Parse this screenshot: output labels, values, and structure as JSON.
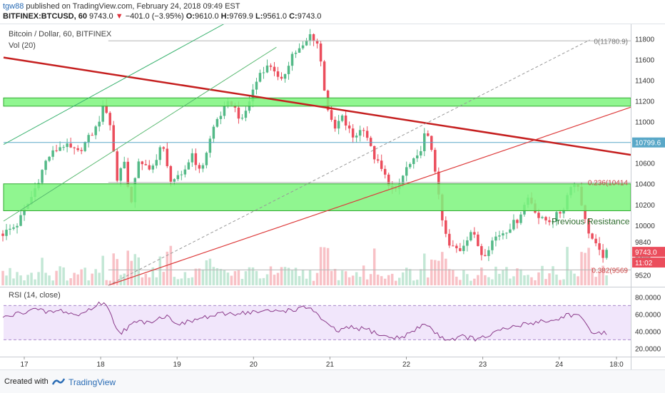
{
  "header": {
    "user": "tgw88",
    "published_text": "published on TradingView.com, February 24, 2018 09:49 EST",
    "symbol": "BITFINEX:BTCUSD, 60",
    "last": "9743.0",
    "change_arrow": "▼",
    "change": "−401.0 (−3.95%)",
    "o_label": "O:",
    "o": "9610.0",
    "h_label": "H:",
    "h": "9769.9",
    "l_label": "L:",
    "l": "9561.0",
    "c_label": "C:",
    "c": "9743.0"
  },
  "footer": {
    "created_with": "Created with",
    "brand": "TradingView"
  },
  "colors": {
    "up": "#53b987",
    "down": "#eb4d5c",
    "green_zone": "#7cf57c",
    "trend_red": "#c51f1f",
    "rsi_line": "#8a3a8a",
    "rsi_band": "#f1e6fb",
    "horizontal": "#5aa8c8"
  },
  "chart_data": [
    {
      "type": "candlestick",
      "title": "Bitcoin / Dollar, 60, BITFINEX",
      "volume_label": "Vol (20)",
      "y_ticks": [
        9520,
        9680,
        9840,
        10000,
        10200,
        10400,
        10600,
        10799.6,
        11000,
        11200,
        11400,
        11600,
        11800
      ],
      "ylim": [
        9420,
        11900
      ],
      "x_ticks": [
        "17",
        "18",
        "19",
        "20",
        "21",
        "22",
        "23",
        "24",
        "18:0"
      ],
      "close_path": [
        [
          16.7,
          9910
        ],
        [
          16.9,
          10000
        ],
        [
          17.1,
          10280
        ],
        [
          17.3,
          10650
        ],
        [
          17.5,
          10780
        ],
        [
          17.7,
          10700
        ],
        [
          17.95,
          10950
        ],
        [
          18.05,
          11180
        ],
        [
          18.15,
          10900
        ],
        [
          18.2,
          10400
        ],
        [
          18.3,
          10650
        ],
        [
          18.4,
          10200
        ],
        [
          18.5,
          10650
        ],
        [
          18.65,
          10500
        ],
        [
          18.8,
          10800
        ],
        [
          18.9,
          10450
        ],
        [
          19.05,
          10450
        ],
        [
          19.2,
          10700
        ],
        [
          19.3,
          10500
        ],
        [
          19.5,
          11000
        ],
        [
          19.7,
          11200
        ],
        [
          19.85,
          11000
        ],
        [
          20.0,
          11320
        ],
        [
          20.1,
          11500
        ],
        [
          20.25,
          11550
        ],
        [
          20.35,
          11350
        ],
        [
          20.5,
          11650
        ],
        [
          20.65,
          11720
        ],
        [
          20.75,
          11850
        ],
        [
          20.85,
          11740
        ],
        [
          20.95,
          11200
        ],
        [
          21.05,
          10900
        ],
        [
          21.15,
          11050
        ],
        [
          21.3,
          10850
        ],
        [
          21.45,
          10950
        ],
        [
          21.55,
          10700
        ],
        [
          21.7,
          10500
        ],
        [
          21.85,
          10300
        ],
        [
          22.0,
          10550
        ],
        [
          22.15,
          10650
        ],
        [
          22.25,
          10900
        ],
        [
          22.35,
          10700
        ],
        [
          22.45,
          10100
        ],
        [
          22.55,
          9800
        ],
        [
          22.7,
          9760
        ],
        [
          22.85,
          9950
        ],
        [
          23.0,
          9700
        ],
        [
          23.15,
          9880
        ],
        [
          23.3,
          9950
        ],
        [
          23.45,
          10050
        ],
        [
          23.6,
          10280
        ],
        [
          23.75,
          10050
        ],
        [
          23.9,
          10050
        ],
        [
          24.05,
          10150
        ],
        [
          24.15,
          10400
        ],
        [
          24.25,
          10380
        ],
        [
          24.35,
          10000
        ],
        [
          24.45,
          9840
        ],
        [
          24.55,
          9700
        ],
        [
          24.65,
          9743
        ]
      ],
      "zones": [
        {
          "name": "resistance-band",
          "from": 11150,
          "to": 11230
        },
        {
          "name": "support-band",
          "from": 10140,
          "to": 10400
        }
      ],
      "horizontal_lines": [
        10799.6
      ],
      "fib_levels": [
        {
          "label": "0(11780.9)",
          "value": 11780.9
        },
        {
          "label": "0.236(10414",
          "value": 10414
        },
        {
          "label": "0.382(9569",
          "value": 9569
        }
      ],
      "annotations": [
        "Previous Resistance"
      ],
      "price_tags": [
        {
          "text": "10799.6",
          "value": 10799.6,
          "kind": "line"
        },
        {
          "text": "9743.0",
          "value": 9743.0,
          "kind": "last"
        },
        {
          "text": "11:02",
          "value": 9640,
          "kind": "timer"
        }
      ]
    },
    {
      "type": "line",
      "title": "RSI (14, close)",
      "y_ticks": [
        20,
        40,
        60,
        80
      ],
      "y_tick_labels": [
        "20.0000",
        "40.0000",
        "60.0000",
        "80.0000"
      ],
      "ylim": [
        12,
        87
      ],
      "band": [
        30,
        70
      ],
      "rsi_path": [
        [
          16.7,
          55
        ],
        [
          16.9,
          60
        ],
        [
          17.1,
          66
        ],
        [
          17.3,
          62
        ],
        [
          17.5,
          64
        ],
        [
          17.7,
          58
        ],
        [
          17.9,
          68
        ],
        [
          18.05,
          75
        ],
        [
          18.15,
          55
        ],
        [
          18.25,
          38
        ],
        [
          18.45,
          50
        ],
        [
          18.65,
          52
        ],
        [
          18.85,
          58
        ],
        [
          19.05,
          48
        ],
        [
          19.3,
          55
        ],
        [
          19.6,
          60
        ],
        [
          19.9,
          62
        ],
        [
          20.2,
          63
        ],
        [
          20.5,
          65
        ],
        [
          20.75,
          68
        ],
        [
          20.95,
          48
        ],
        [
          21.1,
          40
        ],
        [
          21.25,
          44
        ],
        [
          21.5,
          42
        ],
        [
          21.7,
          34
        ],
        [
          21.9,
          32
        ],
        [
          22.1,
          40
        ],
        [
          22.25,
          50
        ],
        [
          22.4,
          36
        ],
        [
          22.55,
          30
        ],
        [
          22.75,
          34
        ],
        [
          22.95,
          30
        ],
        [
          23.15,
          38
        ],
        [
          23.35,
          44
        ],
        [
          23.55,
          48
        ],
        [
          23.75,
          52
        ],
        [
          23.95,
          52
        ],
        [
          24.1,
          60
        ],
        [
          24.25,
          58
        ],
        [
          24.4,
          42
        ],
        [
          24.55,
          36
        ],
        [
          24.65,
          40
        ]
      ]
    }
  ]
}
